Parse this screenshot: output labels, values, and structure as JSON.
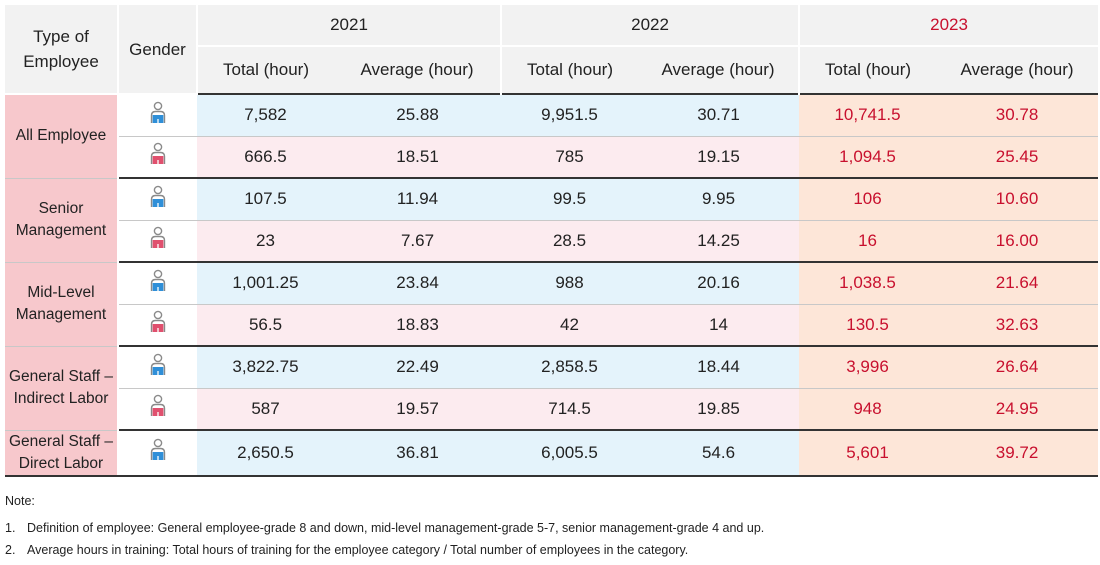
{
  "header": {
    "type_col": "Type of Employee",
    "gender_col": "Gender",
    "years": [
      "2021",
      "2022",
      "2023"
    ],
    "sub_total": "Total (hour)",
    "sub_avg": "Average (hour)"
  },
  "rows": [
    {
      "category": "All Employee",
      "male": [
        "7,582",
        "25.88",
        "9,951.5",
        "30.71",
        "10,741.5",
        "30.78"
      ],
      "female": [
        "666.5",
        "18.51",
        "785",
        "19.15",
        "1,094.5",
        "25.45"
      ]
    },
    {
      "category": "Senior Management",
      "male": [
        "107.5",
        "11.94",
        "99.5",
        "9.95",
        "106",
        "10.60"
      ],
      "female": [
        "23",
        "7.67",
        "28.5",
        "14.25",
        "16",
        "16.00"
      ]
    },
    {
      "category": "Mid-Level Management",
      "male": [
        "1,001.25",
        "23.84",
        "988",
        "20.16",
        "1,038.5",
        "21.64"
      ],
      "female": [
        "56.5",
        "18.83",
        "42",
        "14",
        "130.5",
        "32.63"
      ]
    },
    {
      "category": "General Staff – Indirect Labor",
      "male": [
        "3,822.75",
        "22.49",
        "2,858.5",
        "18.44",
        "3,996",
        "26.64"
      ],
      "female": [
        "587",
        "19.57",
        "714.5",
        "19.85",
        "948",
        "24.95"
      ]
    },
    {
      "category": "General Staff – Direct Labor",
      "male": [
        "2,650.5",
        "36.81",
        "6,005.5",
        "54.6",
        "5,601",
        "39.72"
      ]
    }
  ],
  "notes": {
    "title": "Note:",
    "items": [
      {
        "num": "1.",
        "text": "Definition of employee: General employee-grade 8 and down, mid-level management-grade 5-7, senior management-grade 4 and up."
      },
      {
        "num": "2.",
        "text": "Average hours in training: Total hours of training for the employee category / Total number of employees in the category."
      }
    ]
  },
  "icons": {
    "male": "male-person-icon",
    "female": "female-person-icon"
  },
  "colors": {
    "accent_2023": "#c8102e",
    "male_icon": "#2f8fd8",
    "female_icon": "#e0506e"
  }
}
